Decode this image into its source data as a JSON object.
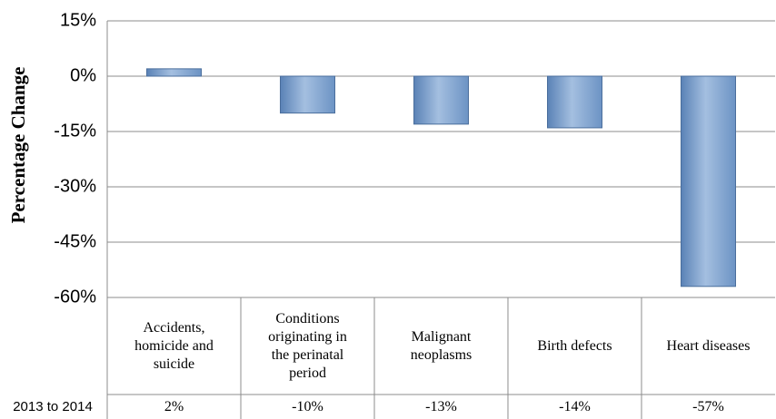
{
  "chart_data": {
    "type": "bar",
    "y_label": "Percentage Change",
    "categories": [
      "Accidents, homicide and suicide",
      "Conditions originating in the perinatal period",
      "Malignant neoplasms",
      "Birth defects",
      "Heart diseases"
    ],
    "series": [
      {
        "name": "2013 to 2014",
        "color": "#4f81bd",
        "values": [
          2,
          -10,
          -13,
          -14,
          -57
        ],
        "value_labels": [
          "2%",
          "-10%",
          "-13%",
          "-14%",
          "-57%"
        ]
      }
    ],
    "ylim": [
      -60,
      15
    ],
    "yticks": [
      {
        "value": 15,
        "label": "15%"
      },
      {
        "value": 0,
        "label": "0%"
      },
      {
        "value": -15,
        "label": "-15%"
      },
      {
        "value": -30,
        "label": "-30%"
      },
      {
        "value": -45,
        "label": "-45%"
      },
      {
        "value": -60,
        "label": "-60%"
      }
    ],
    "grid": true
  }
}
